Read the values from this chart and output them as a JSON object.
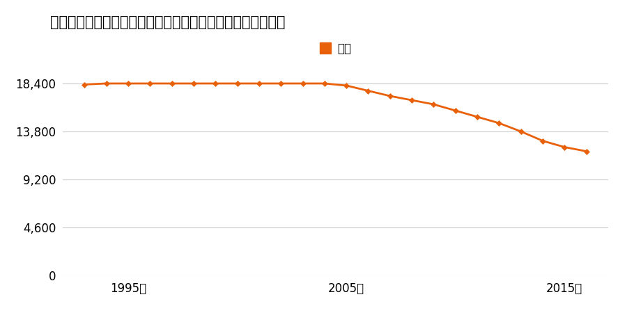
{
  "title": "青森県上北郡六戸町大字犬落瀬字千刈田２番５１の地価推移",
  "legend_label": "価格",
  "years": [
    1993,
    1994,
    1995,
    1996,
    1997,
    1998,
    1999,
    2000,
    2001,
    2002,
    2003,
    2004,
    2005,
    2006,
    2007,
    2008,
    2009,
    2010,
    2011,
    2012,
    2013,
    2014,
    2015,
    2016
  ],
  "prices": [
    18300,
    18400,
    18400,
    18400,
    18400,
    18400,
    18400,
    18400,
    18400,
    18400,
    18400,
    18400,
    18200,
    17700,
    17200,
    16800,
    16400,
    15800,
    15200,
    14600,
    13800,
    12900,
    12300,
    11900
  ],
  "line_color": "#E8610A",
  "marker_color": "#E8610A",
  "background_color": "#ffffff",
  "yticks": [
    0,
    4600,
    9200,
    13800,
    18400
  ],
  "xtick_labels": [
    "1995年",
    "2005年",
    "2015年"
  ],
  "xtick_positions": [
    1995,
    2005,
    2015
  ],
  "ylim": [
    0,
    19800
  ],
  "xlim": [
    1992,
    2017
  ]
}
